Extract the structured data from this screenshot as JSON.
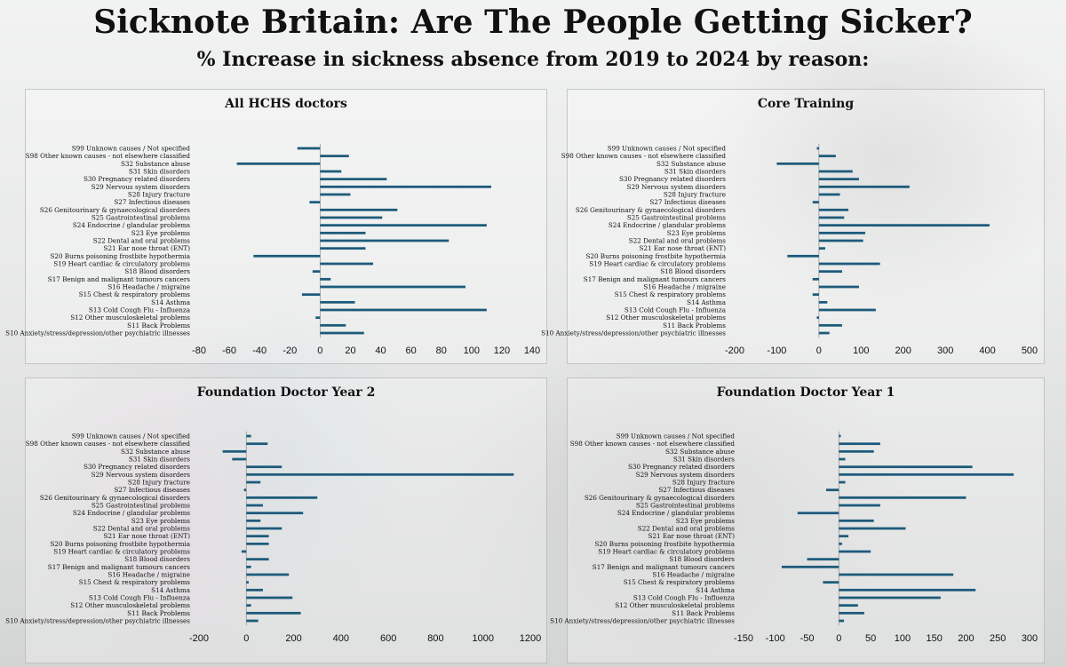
{
  "header": {
    "title": "Sicknote Britain: Are The People Getting Sicker?",
    "subtitle": "% Increase in sickness absence from 2019 to 2024 by reason:"
  },
  "colors": {
    "bar": "#1d5b7b",
    "axis": "#333333"
  },
  "chart_data": [
    {
      "type": "bar",
      "orientation": "horizontal",
      "title": "All HCHS doctors",
      "categories": [
        "S99 Unknown causes / Not specified",
        "S98 Other known causes - not elsewhere classified",
        "S32 Substance abuse",
        "S31 Skin disorders",
        "S30 Pregnancy related disorders",
        "S29 Nervous system disorders",
        "S28 Injury fracture",
        "S27 Infectious diseases",
        "S26 Genitourinary & gynaecological disorders",
        "S25 Gastrointestinal problems",
        "S24 Endocrine / glandular problems",
        "S23 Eye problems",
        "S22 Dental and oral problems",
        "S21 Ear nose throat (ENT)",
        "S20 Burns poisoning frostbite hypothermia",
        "S19 Heart cardiac & circulatory problems",
        "S18 Blood disorders",
        "S17 Benign and malignant tumours cancers",
        "S16 Headache / migraine",
        "S15 Chest & respiratory problems",
        "S14 Asthma",
        "S13 Cold Cough Flu - Influenza",
        "S12 Other musculoskeletal problems",
        "S11 Back Problems",
        "S10 Anxiety/stress/depression/other psychiatric illnesses"
      ],
      "values": [
        -15,
        19,
        -55,
        14,
        44,
        113,
        20,
        -7,
        51,
        41,
        110,
        30,
        85,
        30,
        -44,
        35,
        -5,
        7,
        96,
        -12,
        23,
        110,
        -3,
        17,
        29
      ],
      "xlim": [
        -80,
        140
      ],
      "xticks": [
        -80,
        -60,
        -40,
        -20,
        0,
        20,
        40,
        60,
        80,
        100,
        120,
        140
      ]
    },
    {
      "type": "bar",
      "orientation": "horizontal",
      "title": "Core Training",
      "categories": [
        "S99 Unknown causes / Not specified",
        "S98 Other known causes - not elsewhere classified",
        "S32 Substance abuse",
        "S31 Skin disorders",
        "S30 Pregnancy related disorders",
        "S29 Nervous system disorders",
        "S28 Injury fracture",
        "S27 Infectious diseases",
        "S26 Genitourinary & gynaecological disorders",
        "S25 Gastrointestinal problems",
        "S24 Endocrine / glandular problems",
        "S23 Eye problems",
        "S22 Dental and oral problems",
        "S21 Ear nose throat (ENT)",
        "S20 Burns poisoning frostbite hypothermia",
        "S19 Heart cardiac & circulatory problems",
        "S18 Blood disorders",
        "S17 Benign and malignant tumours cancers",
        "S16 Headache / migraine",
        "S15 Chest & respiratory problems",
        "S14 Asthma",
        "S13 Cold Cough Flu - Influenza",
        "S12 Other musculoskeletal problems",
        "S11 Back Problems",
        "S10 Anxiety/stress/depression/other psychiatric illnesses"
      ],
      "values": [
        -5,
        40,
        -100,
        80,
        95,
        215,
        50,
        -15,
        70,
        60,
        405,
        110,
        105,
        15,
        -75,
        145,
        55,
        -15,
        95,
        -15,
        20,
        135,
        -5,
        55,
        25
      ],
      "xlim": [
        -200,
        500
      ],
      "xticks": [
        -200,
        -100,
        0,
        100,
        200,
        300,
        400,
        500
      ]
    },
    {
      "type": "bar",
      "orientation": "horizontal",
      "title": "Foundation Doctor Year 2",
      "categories": [
        "S99 Unknown causes / Not specified",
        "S98 Other known causes - not elsewhere classified",
        "S32 Substance abuse",
        "S31 Skin disorders",
        "S30 Pregnancy related disorders",
        "S29 Nervous system disorders",
        "S28 Injury fracture",
        "S27 Infectious diseases",
        "S26 Genitourinary & gynaecological disorders",
        "S25 Gastrointestinal problems",
        "S24 Endocrine / glandular problems",
        "S23 Eye problems",
        "S22 Dental and oral problems",
        "S21 Ear nose throat (ENT)",
        "S20 Burns poisoning frostbite hypothermia",
        "S19 Heart cardiac & circulatory problems",
        "S18 Blood disorders",
        "S17 Benign and malignant tumours cancers",
        "S16 Headache / migraine",
        "S15 Chest & respiratory problems",
        "S14 Asthma",
        "S13 Cold Cough Flu - Influenza",
        "S12 Other musculoskeletal problems",
        "S11 Back Problems",
        "S10 Anxiety/stress/depression/other psychiatric illnesses"
      ],
      "values": [
        20,
        90,
        -100,
        -60,
        150,
        1130,
        60,
        -10,
        300,
        70,
        240,
        60,
        150,
        95,
        95,
        -20,
        95,
        20,
        180,
        10,
        70,
        195,
        20,
        230,
        50
      ],
      "xlim": [
        -200,
        1200
      ],
      "xticks": [
        -200,
        0,
        200,
        400,
        600,
        800,
        1000,
        1200
      ]
    },
    {
      "type": "bar",
      "orientation": "horizontal",
      "title": "Foundation Doctor Year 1",
      "categories": [
        "S99 Unknown causes / Not specified",
        "S98 Other known causes - not elsewhere classified",
        "S32 Substance abuse",
        "S31 Skin disorders",
        "S30 Pregnancy related disorders",
        "S29 Nervous system disorders",
        "S28 Injury fracture",
        "S27 Infectious diseases",
        "S26 Genitourinary & gynaecological disorders",
        "S25 Gastrointestinal problems",
        "S24 Endocrine / glandular problems",
        "S23 Eye problems",
        "S22 Dental and oral problems",
        "S21 Ear nose throat (ENT)",
        "S20 Burns poisoning frostbite hypothermia",
        "S19 Heart cardiac & circulatory problems",
        "S18 Blood disorders",
        "S17 Benign and malignant tumours cancers",
        "S16 Headache / migraine",
        "S15 Chest & respiratory problems",
        "S14 Asthma",
        "S13 Cold Cough Flu - Influenza",
        "S12 Other musculoskeletal problems",
        "S11 Back Problems",
        "S10 Anxiety/stress/depression/other psychiatric illnesses"
      ],
      "values": [
        3,
        65,
        55,
        10,
        210,
        275,
        10,
        -20,
        200,
        65,
        -65,
        55,
        105,
        15,
        5,
        50,
        -50,
        -90,
        180,
        -25,
        215,
        160,
        30,
        40,
        8
      ],
      "xlim": [
        -150,
        300
      ],
      "xticks": [
        -150,
        -100,
        -50,
        0,
        50,
        100,
        150,
        200,
        250,
        300
      ]
    }
  ]
}
